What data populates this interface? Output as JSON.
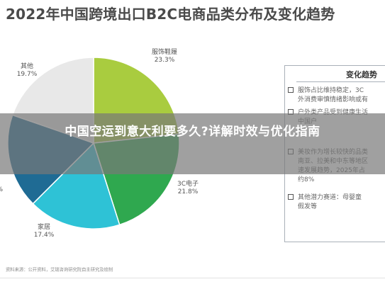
{
  "chart_title": "2022年中国跨境出口B2C电商品类分布及变化趋势",
  "chart_data": {
    "type": "pie",
    "title": "2022年中国跨境出口B2C电商品类分布及变化趋势",
    "slices": [
      {
        "label": "服饰鞋履",
        "value": 23.3,
        "percent_text": "23.3%",
        "color": "#a9cc3f"
      },
      {
        "label": "3C电子",
        "value": 21.8,
        "percent_text": "21.8%",
        "color": "#2fa84f"
      },
      {
        "label": "家居",
        "value": 17.4,
        "percent_text": "17.4%",
        "color": "#2ec2d6"
      },
      {
        "label": "",
        "value": 17.8,
        "percent_text": "%",
        "color": "#1f6b94"
      },
      {
        "label": "其他",
        "value": 19.7,
        "percent_text": "19.7%",
        "color": "#e8e8e8"
      }
    ]
  },
  "side_panel": {
    "title": "变化趋势",
    "items": [
      "服饰占比维持稳定，3C\n外消费审慎情绪影响或有",
      "户外类产品受到健康生活\n中国户\n及",
      "美妆作为增长较快的品类\n南亚、拉美和中东等地区\n速发展趋势，2025年占\n约8%",
      "其他潜力赛道：母婴童\n假发等"
    ]
  },
  "source_note": "资料来源：公开资料，艾瑞咨询研究院自主研究及绘制",
  "overlay": {
    "headline": "中国空运到意大利要多久?详解时效与优化指南"
  },
  "colors": {
    "title": "#4a4a4a",
    "overlay": "rgba(120,120,120,0.70)"
  }
}
